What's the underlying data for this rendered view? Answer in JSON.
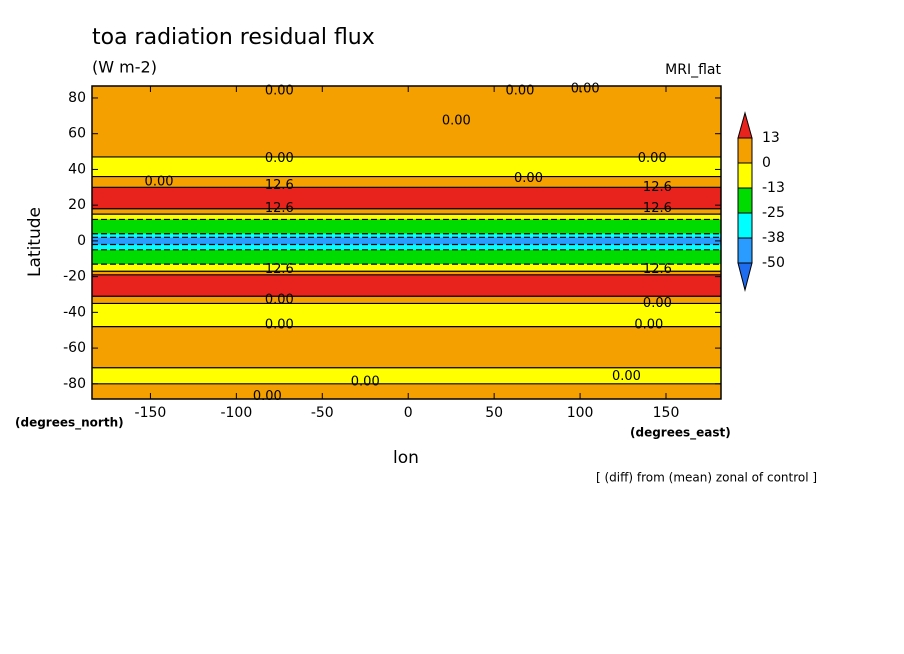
{
  "chart_data": {
    "type": "contour",
    "title": "toa radiation residual flux",
    "subtitle": "(W m-2)",
    "model": "MRI_flat",
    "xlabel": "lon",
    "ylabel": "Latitude",
    "x_unit": "(degrees_east)",
    "y_unit": "(degrees_north)",
    "footnote": "[ (diff) from (mean) zonal of control ]",
    "xlim": [
      -184,
      182
    ],
    "ylim": [
      -88.5,
      86.7
    ],
    "xticks": [
      -150,
      -100,
      -50,
      0,
      50,
      100,
      150
    ],
    "yticks": [
      -80,
      -60,
      -40,
      -20,
      0,
      20,
      40,
      60,
      80
    ],
    "colorbar": {
      "levels": [
        13,
        0,
        -13,
        -25,
        -38,
        -50
      ],
      "colors": [
        "#e8231d",
        "#f4a000",
        "#ffff00",
        "#00dc00",
        "#00ffff",
        "#2a9cff",
        "#1e6cf0"
      ]
    },
    "bands": {
      "edges": [
        86.7,
        47,
        36,
        30,
        18,
        15,
        12,
        4,
        2,
        -2,
        -5,
        -13,
        -17,
        -19,
        -31,
        -35,
        -48,
        -71,
        -80,
        -88.5
      ],
      "values": [
        6,
        -5,
        5,
        18,
        5,
        -5,
        -20,
        -30,
        -45,
        -30,
        -20,
        -5,
        5,
        18,
        5,
        -5,
        6,
        -5,
        6
      ]
    },
    "contour_labels": [
      {
        "value": 0,
        "label": "0.00",
        "lon": -75,
        "lat": 84
      },
      {
        "value": 0,
        "label": "0.00",
        "lon": 65,
        "lat": 84
      },
      {
        "value": 0,
        "label": "0.00",
        "lon": 103,
        "lat": 85
      },
      {
        "value": 0,
        "label": "0.00",
        "lon": 28,
        "lat": 67
      },
      {
        "value": 0,
        "label": "0.00",
        "lon": -75,
        "lat": 46
      },
      {
        "value": 0,
        "label": "0.00",
        "lon": 142,
        "lat": 46
      },
      {
        "value": 0,
        "label": "0.00",
        "lon": -145,
        "lat": 33
      },
      {
        "value": 0,
        "label": "0.00",
        "lon": 70,
        "lat": 35
      },
      {
        "value": 12.6,
        "label": "12.6",
        "lon": -75,
        "lat": 31
      },
      {
        "value": 12.6,
        "label": "12.6",
        "lon": 145,
        "lat": 30
      },
      {
        "value": 12.6,
        "label": "12.6",
        "lon": -75,
        "lat": 18
      },
      {
        "value": 12.6,
        "label": "12.6",
        "lon": 145,
        "lat": 18
      },
      {
        "value": 12.6,
        "label": "12.6",
        "lon": -75,
        "lat": -16
      },
      {
        "value": 12.6,
        "label": "12.6",
        "lon": 145,
        "lat": -16
      },
      {
        "value": 0,
        "label": "0.00",
        "lon": -75,
        "lat": -33
      },
      {
        "value": 0,
        "label": "0.00",
        "lon": 145,
        "lat": -35
      },
      {
        "value": 0,
        "label": "0.00",
        "lon": -75,
        "lat": -47
      },
      {
        "value": 0,
        "label": "0.00",
        "lon": 140,
        "lat": -47
      },
      {
        "value": 0,
        "label": "0.00",
        "lon": -25,
        "lat": -79
      },
      {
        "value": 0,
        "label": "0.00",
        "lon": 127,
        "lat": -76
      },
      {
        "value": 0,
        "label": "0.00",
        "lon": -82,
        "lat": -87
      }
    ]
  }
}
